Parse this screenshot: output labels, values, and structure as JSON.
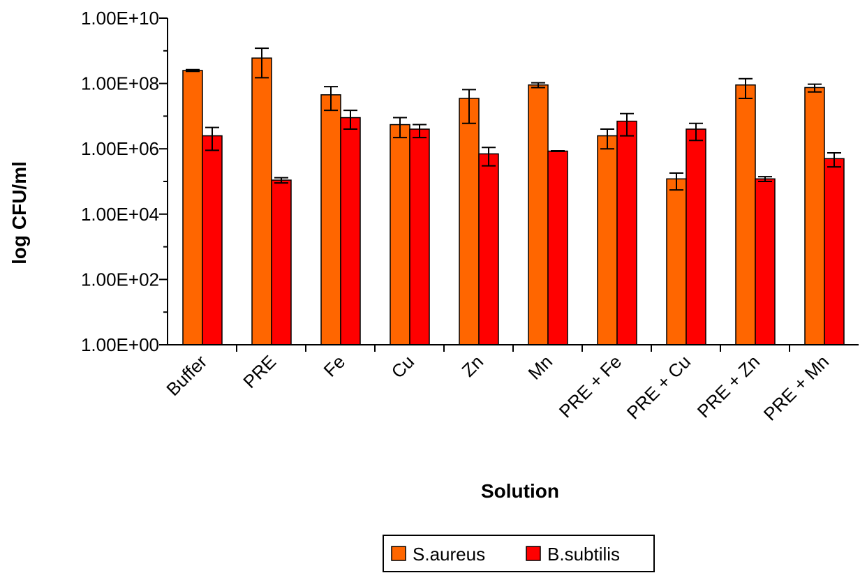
{
  "chart_data": {
    "type": "bar",
    "title": "",
    "xlabel": "Solution",
    "ylabel": "log CFU/ml",
    "yscale": "log",
    "ylim": [
      1,
      10000000000
    ],
    "yticks": [
      1,
      100,
      10000,
      1000000,
      100000000,
      10000000000
    ],
    "ytick_labels": [
      "1.00E+00",
      "1.00E+02",
      "1.00E+04",
      "1.00E+06",
      "1.00E+08",
      "1.00E+10"
    ],
    "grid": false,
    "legend": "bottom",
    "categories": [
      "Buffer",
      "PRE",
      "Fe",
      "Cu",
      "Zn",
      "Mn",
      "PRE + Fe",
      "PRE + Cu",
      "PRE + Zn",
      "PRE + Mn"
    ],
    "series": [
      {
        "name": "S.aureus",
        "color": "#FF6600",
        "values": [
          250000000,
          600000000,
          45000000,
          5500000,
          35000000,
          90000000,
          2500000,
          120000,
          90000000,
          75000000
        ],
        "err_low": [
          235000000,
          150000000,
          15000000,
          2200000,
          6000000,
          75000000,
          1000000,
          55000,
          35000000,
          55000000
        ],
        "err_high": [
          265000000,
          1200000000,
          80000000,
          9000000,
          65000000,
          105000000,
          4000000,
          180000,
          140000000,
          95000000
        ]
      },
      {
        "name": "B.subtilis",
        "color": "#FF0000",
        "values": [
          2500000,
          110000,
          9000000,
          4000000,
          700000,
          850000,
          7000000,
          4000000,
          120000,
          500000
        ],
        "err_low": [
          900000,
          90000,
          4000000,
          2200000,
          300000,
          830000,
          2500000,
          1800000,
          100000,
          280000
        ],
        "err_high": [
          4500000,
          130000,
          15000000,
          5500000,
          1100000,
          870000,
          12000000,
          6000000,
          140000,
          750000
        ]
      }
    ]
  }
}
